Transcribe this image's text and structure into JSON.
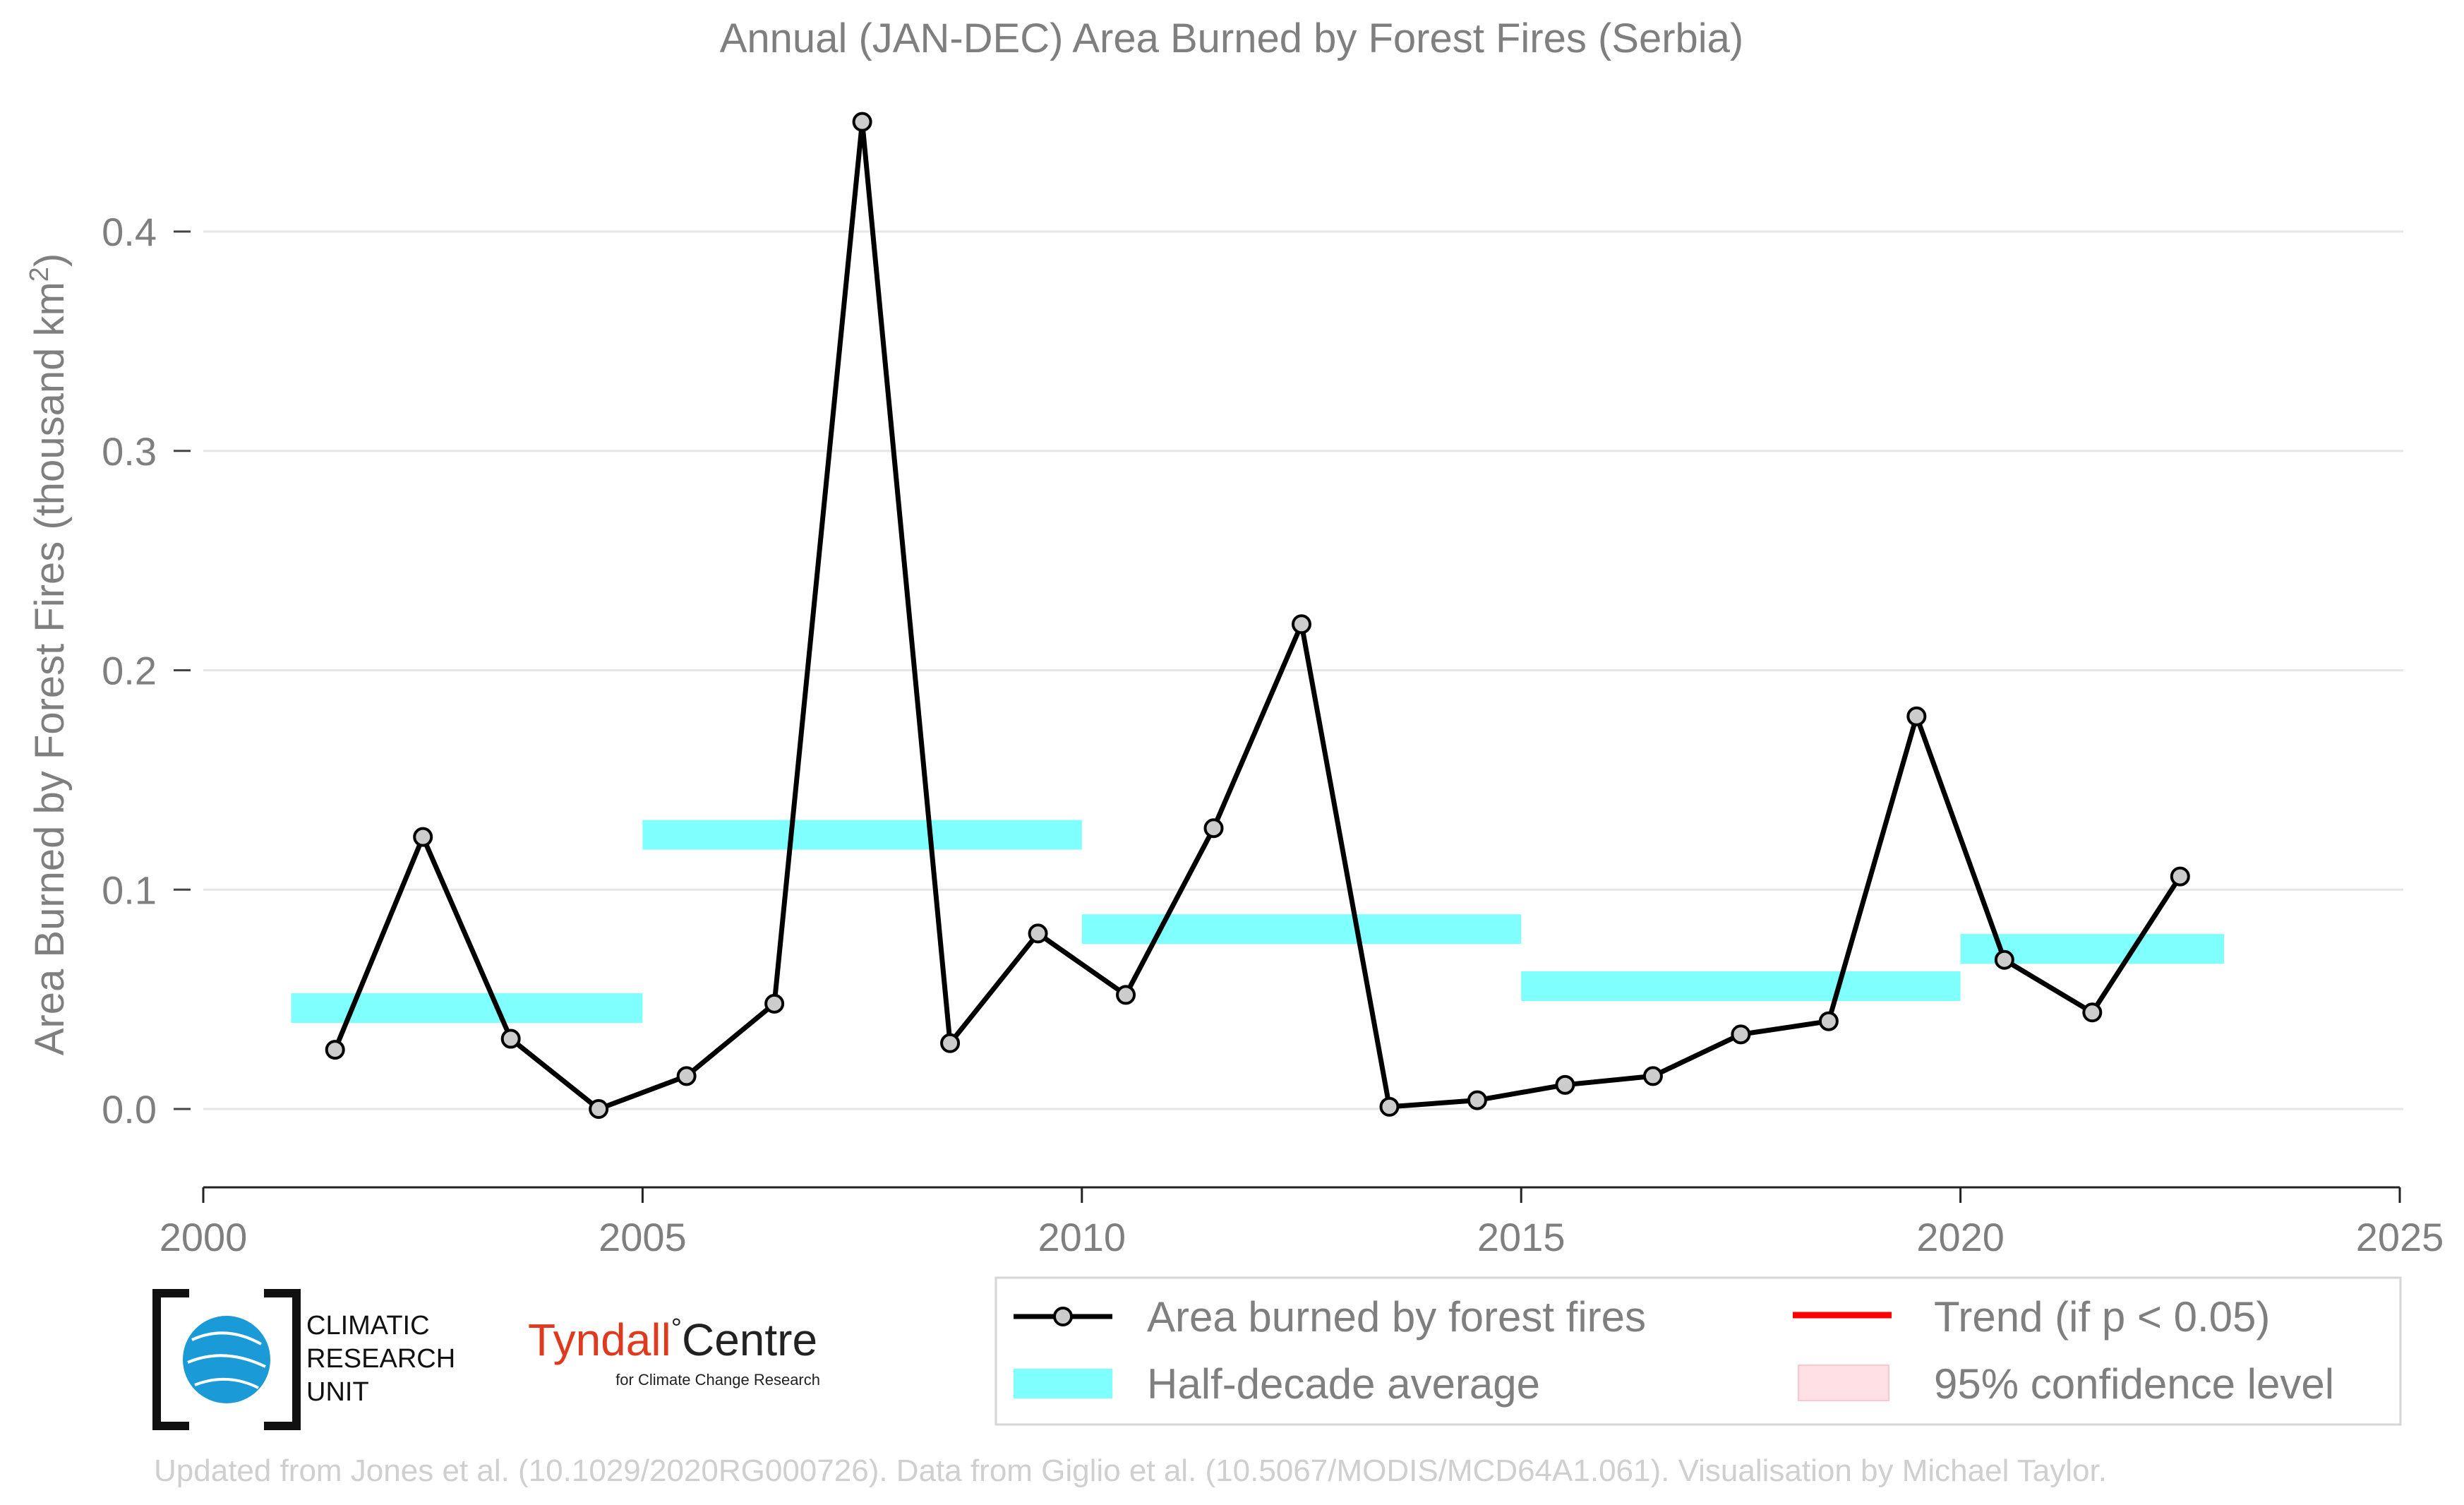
{
  "chart_data": {
    "type": "line",
    "title": "Annual (JAN-DEC) Area Burned by Forest Fires (Serbia)",
    "ylabel": "Area Burned by Forest Fires (thousand km",
    "ylabel_sup": "2",
    "ylabel_end": ")",
    "xlabel": "",
    "xlim": [
      2000,
      2025
    ],
    "ylim": [
      -0.035,
      0.45
    ],
    "x_ticks": [
      2000,
      2005,
      2010,
      2015,
      2020,
      2025
    ],
    "x_tick_labels": [
      "2000",
      "2005",
      "2010",
      "2015",
      "2020",
      "2025"
    ],
    "y_ticks": [
      0.0,
      0.1,
      0.2,
      0.3,
      0.4
    ],
    "y_tick_labels": [
      "0.0",
      "0.1",
      "0.2",
      "0.3",
      "0.4"
    ],
    "grid": true,
    "legend_position": "bottom-right",
    "series": [
      {
        "name": "Area burned by forest fires",
        "color": "#000000",
        "marker_fill": "#cccccc",
        "x": [
          2001.5,
          2002.5,
          2003.5,
          2004.5,
          2005.5,
          2006.5,
          2007.5,
          2008.5,
          2009.5,
          2010.5,
          2011.5,
          2012.5,
          2013.5,
          2014.5,
          2015.5,
          2016.5,
          2017.5,
          2018.5,
          2019.5,
          2020.5,
          2021.5,
          2022.5
        ],
        "values": [
          0.027,
          0.124,
          0.032,
          0.0,
          0.015,
          0.048,
          0.45,
          0.03,
          0.08,
          0.052,
          0.128,
          0.221,
          0.001,
          0.004,
          0.011,
          0.015,
          0.034,
          0.04,
          0.179,
          0.068,
          0.044,
          0.106
        ]
      },
      {
        "name": "Half-decade average",
        "color": "#80ffff",
        "segments": [
          {
            "x_start": 2001.0,
            "x_end": 2005.0,
            "value": 0.046
          },
          {
            "x_start": 2005.0,
            "x_end": 2010.0,
            "value": 0.125
          },
          {
            "x_start": 2010.0,
            "x_end": 2015.0,
            "value": 0.082
          },
          {
            "x_start": 2015.0,
            "x_end": 2020.0,
            "value": 0.056
          },
          {
            "x_start": 2020.0,
            "x_end": 2023.0,
            "value": 0.073
          }
        ]
      },
      {
        "name": "Trend (if p < 0.05)",
        "color": "#ff0000"
      },
      {
        "name": "95% confidence level",
        "color": "#ffe0e4"
      }
    ]
  },
  "legend": {
    "items": [
      "Area burned by forest fires",
      "Half-decade average",
      "Trend (if p < 0.05)",
      "95% confidence level"
    ]
  },
  "logos": {
    "cru_lines": [
      "CLIMATIC",
      "RESEARCH",
      "UNIT"
    ],
    "tyndall_main": "Tyndall",
    "tyndall_degree": "°",
    "tyndall_centre": "Centre",
    "tyndall_sub": "for Climate Change Research"
  },
  "credit": "Updated from Jones et al. (10.1029/2020RG000726). Data from Giglio et al. (10.5067/MODIS/MCD64A1.061). Visualisation by Michael Taylor.",
  "colors": {
    "text_grey": "#7f7f7f",
    "credit_grey": "#cfcfcf",
    "grid": "#e6e6e6",
    "tyndall_red": "#e03a1e",
    "cru_blue": "#1a9ad6"
  }
}
